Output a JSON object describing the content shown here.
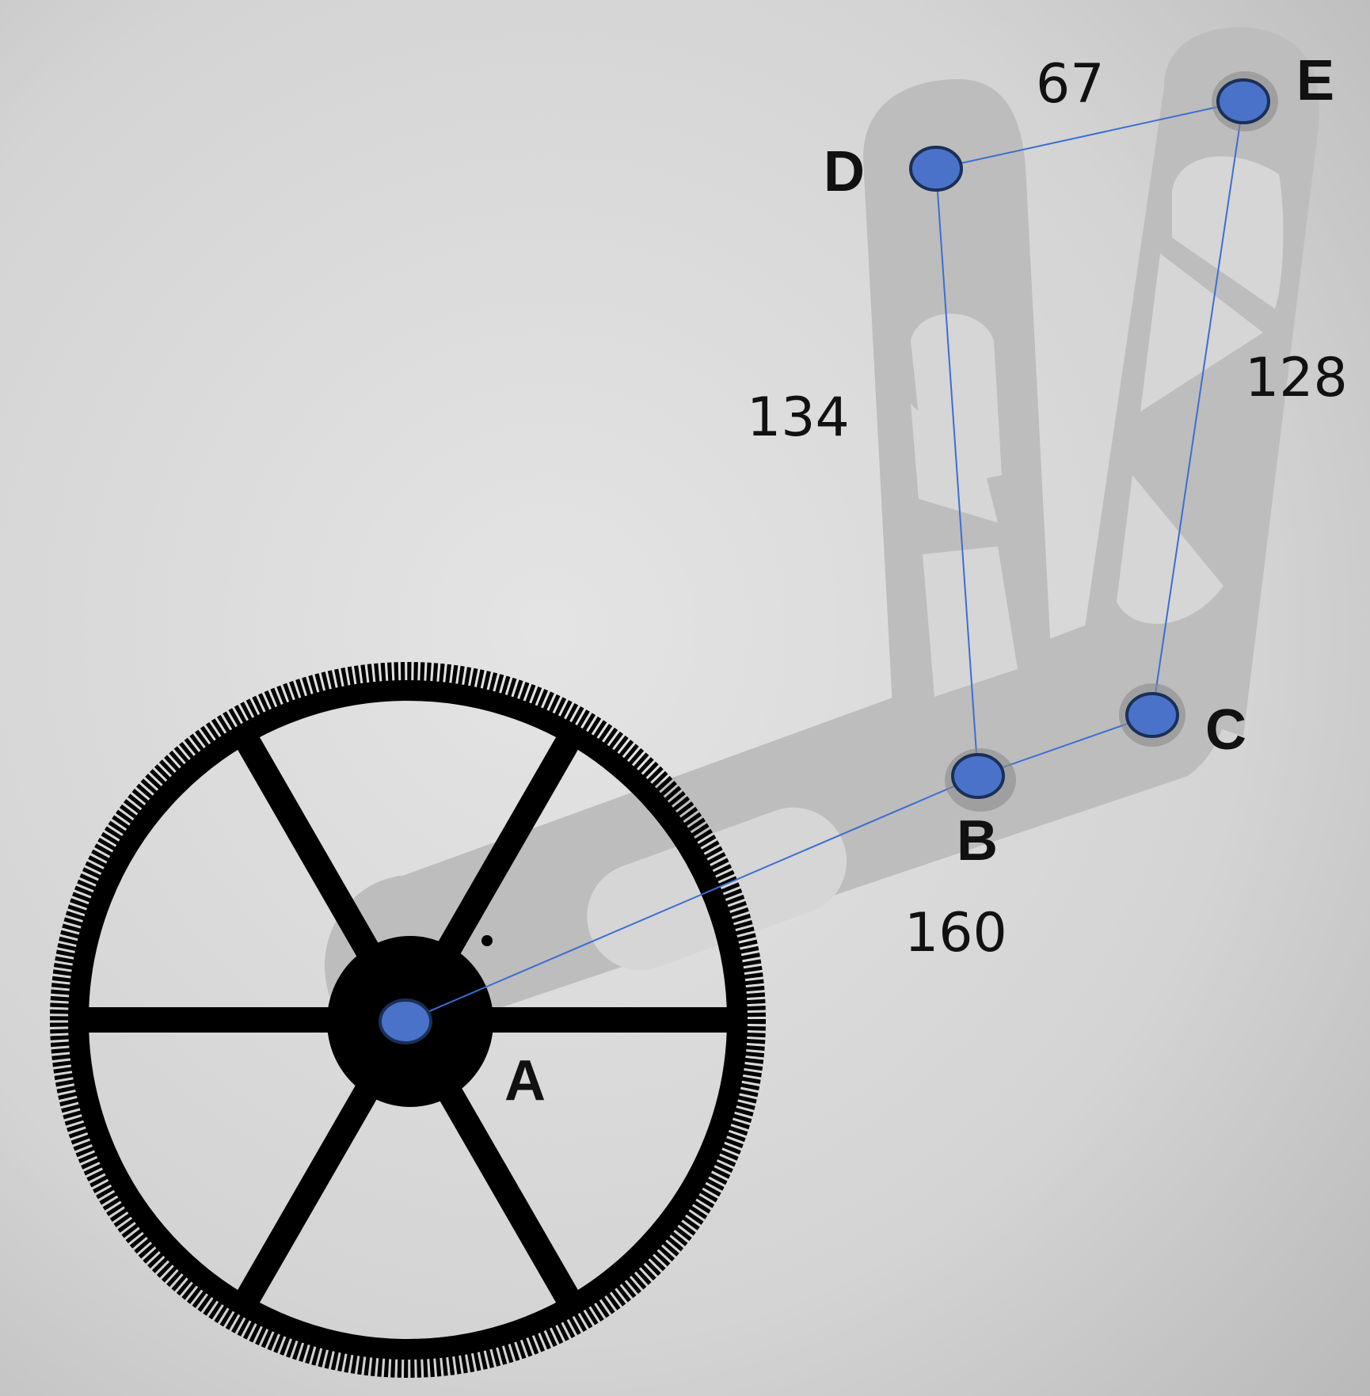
{
  "figure": {
    "description_colors": {
      "background_light": "#e2e2e2",
      "background_dark": "#b8b8b8",
      "frame": "#bdbdbd",
      "wheel": "#000000",
      "joint_fill": "#4a72c9",
      "joint_stroke": "#1b2f57",
      "link_line": "#3b6fd1"
    }
  },
  "points": {
    "A": "A",
    "B": "B",
    "C": "C",
    "D": "D",
    "E": "E"
  },
  "lengths": {
    "AB": "160",
    "BD": "134",
    "DE": "67",
    "EC": "128"
  }
}
